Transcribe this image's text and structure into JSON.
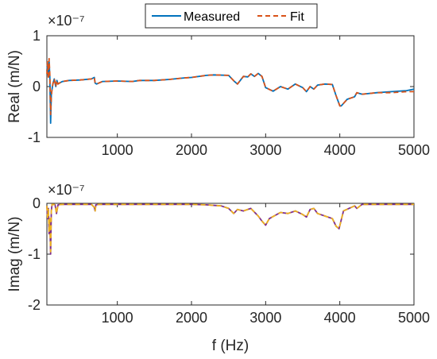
{
  "legend": {
    "entries": [
      {
        "name": "Measured",
        "color": "#0072BD",
        "style": "solid"
      },
      {
        "name": "Fit",
        "color": "#D95319",
        "style": "dashed"
      }
    ]
  },
  "chart_data": [
    {
      "type": "line",
      "panel": "top",
      "xlabel": "",
      "ylabel": "Real (m/N)",
      "exponent_label": "×10⁻⁷",
      "xlim": [
        50,
        5000
      ],
      "ylim": [
        -1,
        1
      ],
      "xticks": [
        1000,
        2000,
        3000,
        4000,
        5000
      ],
      "yticks": [
        -1,
        0,
        1
      ],
      "grid": false,
      "legend_placement": "top-center",
      "series": [
        {
          "name": "Measured",
          "color": "#0072BD",
          "x": [
            50,
            60,
            70,
            80,
            90,
            100,
            110,
            120,
            130,
            150,
            170,
            185,
            200,
            220,
            260,
            350,
            500,
            650,
            690,
            700,
            720,
            800,
            1000,
            1200,
            1300,
            1500,
            1700,
            1900,
            2000,
            2200,
            2300,
            2500,
            2580,
            2620,
            2700,
            2760,
            2800,
            2850,
            2900,
            2950,
            3000,
            3100,
            3200,
            3300,
            3400,
            3500,
            3550,
            3600,
            3650,
            3700,
            3800,
            3900,
            3950,
            4000,
            4020,
            4100,
            4200,
            4230,
            4300,
            4500,
            4700,
            4900,
            5000
          ],
          "y": [
            0.3,
            0.45,
            0.2,
            0.5,
            0.2,
            -0.72,
            -0.15,
            -0.05,
            0.05,
            0.15,
            0.0,
            0.12,
            0.05,
            0.07,
            0.1,
            0.12,
            0.13,
            0.15,
            0.18,
            0.07,
            0.05,
            0.1,
            0.11,
            0.1,
            0.12,
            0.12,
            0.14,
            0.17,
            0.18,
            0.22,
            0.23,
            0.22,
            0.1,
            0.05,
            0.2,
            0.19,
            0.25,
            0.2,
            0.26,
            0.2,
            -0.02,
            -0.09,
            0.0,
            -0.05,
            0.05,
            -0.02,
            -0.1,
            0.0,
            -0.05,
            0.03,
            0.05,
            0.04,
            -0.18,
            -0.38,
            -0.38,
            -0.25,
            -0.2,
            -0.12,
            -0.15,
            -0.12,
            -0.1,
            -0.08,
            -0.05
          ]
        },
        {
          "name": "Fit",
          "color": "#D95319",
          "x": [
            50,
            60,
            70,
            80,
            90,
            100,
            110,
            120,
            130,
            150,
            170,
            185,
            200,
            220,
            260,
            350,
            500,
            650,
            690,
            700,
            720,
            800,
            1000,
            1200,
            1300,
            1500,
            1700,
            1900,
            2000,
            2200,
            2300,
            2500,
            2580,
            2620,
            2700,
            2760,
            2800,
            2850,
            2900,
            2950,
            3000,
            3100,
            3200,
            3300,
            3400,
            3500,
            3550,
            3600,
            3650,
            3700,
            3800,
            3900,
            3950,
            4000,
            4020,
            4100,
            4200,
            4230,
            4300,
            4500,
            4700,
            4900,
            5000
          ],
          "y": [
            0.25,
            0.5,
            0.15,
            0.55,
            0.25,
            -0.55,
            -0.2,
            -0.05,
            0.05,
            0.15,
            0.0,
            0.12,
            0.05,
            0.07,
            0.1,
            0.12,
            0.13,
            0.15,
            0.18,
            0.07,
            0.05,
            0.1,
            0.11,
            0.1,
            0.12,
            0.12,
            0.14,
            0.17,
            0.18,
            0.22,
            0.23,
            0.22,
            0.1,
            0.05,
            0.2,
            0.19,
            0.25,
            0.2,
            0.26,
            0.2,
            -0.02,
            -0.09,
            0.0,
            -0.05,
            0.05,
            -0.02,
            -0.1,
            0.0,
            -0.05,
            0.03,
            0.05,
            0.04,
            -0.18,
            -0.38,
            -0.38,
            -0.25,
            -0.2,
            -0.12,
            -0.15,
            -0.12,
            -0.12,
            -0.1,
            -0.1
          ]
        }
      ]
    },
    {
      "type": "line",
      "panel": "bottom",
      "xlabel": "f (Hz)",
      "ylabel": "Imag (m/N)",
      "exponent_label": "×10⁻⁷",
      "xlim": [
        50,
        5000
      ],
      "ylim": [
        -2,
        0
      ],
      "xticks": [
        1000,
        2000,
        3000,
        4000,
        5000
      ],
      "yticks": [
        -2,
        -1,
        0
      ],
      "grid": false,
      "series": [
        {
          "name": "Measured",
          "color": "#7E2F8E",
          "x": [
            50,
            60,
            70,
            80,
            90,
            100,
            110,
            120,
            140,
            160,
            180,
            200,
            250,
            400,
            650,
            690,
            700,
            710,
            750,
            1000,
            1500,
            2000,
            2200,
            2400,
            2500,
            2570,
            2620,
            2700,
            2800,
            2900,
            2950,
            3000,
            3050,
            3200,
            3300,
            3400,
            3500,
            3550,
            3600,
            3650,
            3700,
            3800,
            3900,
            3950,
            3990,
            4050,
            4200,
            4230,
            4300,
            4500,
            5000
          ],
          "y": [
            -0.05,
            -0.3,
            -0.1,
            -0.6,
            -0.3,
            -1.0,
            -0.15,
            -0.02,
            -0.02,
            -0.03,
            -0.2,
            -0.03,
            -0.02,
            -0.02,
            -0.02,
            -0.08,
            -0.15,
            -0.03,
            -0.02,
            -0.02,
            -0.02,
            -0.02,
            -0.03,
            -0.05,
            -0.1,
            -0.2,
            -0.12,
            -0.15,
            -0.1,
            -0.25,
            -0.35,
            -0.43,
            -0.3,
            -0.18,
            -0.2,
            -0.15,
            -0.22,
            -0.27,
            -0.12,
            -0.1,
            -0.2,
            -0.25,
            -0.3,
            -0.45,
            -0.5,
            -0.15,
            -0.05,
            -0.1,
            -0.02,
            -0.02,
            -0.02
          ]
        },
        {
          "name": "Fit",
          "color": "#EDB120",
          "x": [
            50,
            60,
            70,
            80,
            90,
            100,
            110,
            120,
            140,
            160,
            180,
            200,
            250,
            400,
            650,
            690,
            700,
            710,
            750,
            1000,
            1500,
            2000,
            2200,
            2400,
            2500,
            2570,
            2620,
            2700,
            2800,
            2900,
            2950,
            3000,
            3050,
            3200,
            3300,
            3400,
            3500,
            3550,
            3600,
            3650,
            3700,
            3800,
            3900,
            3950,
            3990,
            4050,
            4200,
            4230,
            4300,
            4500,
            5000
          ],
          "y": [
            -0.05,
            -0.28,
            -0.1,
            -0.55,
            -0.3,
            -0.95,
            -0.15,
            -0.02,
            -0.02,
            -0.03,
            -0.2,
            -0.03,
            -0.02,
            -0.02,
            -0.02,
            -0.08,
            -0.15,
            -0.03,
            -0.02,
            -0.02,
            -0.02,
            -0.02,
            -0.03,
            -0.05,
            -0.1,
            -0.2,
            -0.12,
            -0.15,
            -0.1,
            -0.25,
            -0.35,
            -0.43,
            -0.3,
            -0.18,
            -0.2,
            -0.15,
            -0.22,
            -0.27,
            -0.12,
            -0.1,
            -0.2,
            -0.25,
            -0.3,
            -0.45,
            -0.5,
            -0.15,
            -0.05,
            -0.1,
            -0.02,
            -0.02,
            -0.02
          ]
        }
      ]
    }
  ]
}
